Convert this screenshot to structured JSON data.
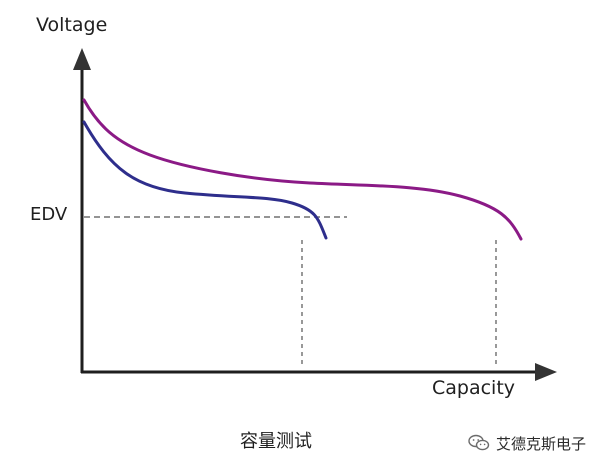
{
  "axes": {
    "y_label": "Voltage",
    "x_label": "Capacity"
  },
  "threshold": {
    "label": "EDV"
  },
  "curves": [
    {
      "color": "#2e2e8c"
    },
    {
      "color": "#8b1a86"
    }
  ],
  "caption": "容量测试",
  "watermark": {
    "text": "艾德克斯电子",
    "icon": "wechat-icon"
  },
  "colors": {
    "axis": "#1f1f1f",
    "dashed": "#555555"
  }
}
